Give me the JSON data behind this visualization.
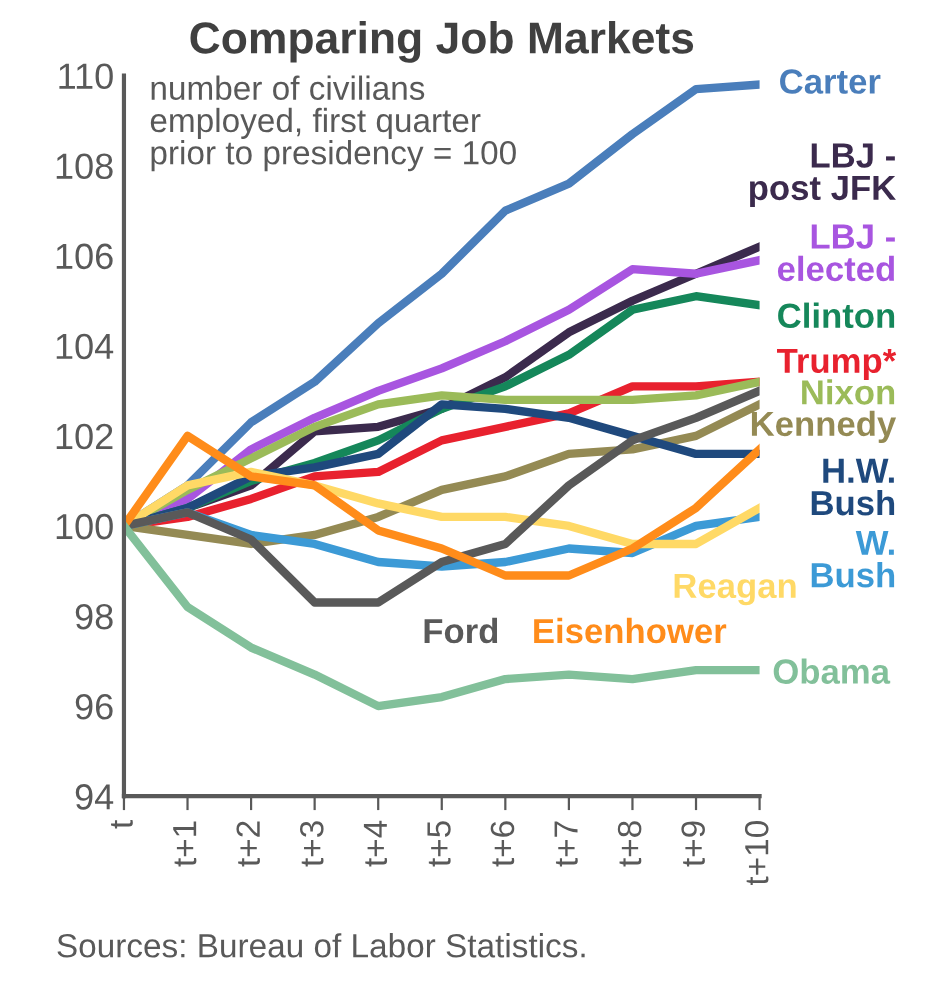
{
  "chart_data": {
    "type": "line",
    "title": "Comparing Job Markets",
    "annotations": [
      "number of civilians employed, first quarter prior to presidency = 100",
      "Sources: Bureau of Labor Statistics."
    ],
    "categories": [
      "t",
      "t+1",
      "t+2",
      "t+3",
      "t+4",
      "t+5",
      "t+6",
      "t+7",
      "t+8",
      "t+9",
      "t+10"
    ],
    "ylim": [
      94,
      110
    ],
    "yticks": [
      94,
      96,
      98,
      100,
      102,
      104,
      106,
      108,
      110
    ],
    "grid": false,
    "legend": false,
    "marker": "none",
    "line_style": "solid",
    "series": [
      {
        "name": "Carter",
        "color": "#4a7ebb",
        "values": [
          100,
          100.9,
          102.3,
          103.2,
          104.5,
          105.6,
          107.0,
          107.6,
          108.7,
          109.7,
          109.8
        ]
      },
      {
        "name": "LBJ - post JFK",
        "color": "#3b2a4d",
        "values": [
          100,
          100.4,
          100.9,
          102.1,
          102.2,
          102.6,
          103.3,
          104.3,
          105.0,
          105.6,
          106.2
        ]
      },
      {
        "name": "LBJ - elected",
        "color": "#a855e0",
        "values": [
          100,
          100.6,
          101.7,
          102.4,
          103.0,
          103.5,
          104.1,
          104.8,
          105.7,
          105.6,
          105.9
        ]
      },
      {
        "name": "Clinton",
        "color": "#15875a",
        "values": [
          100,
          100.4,
          101.0,
          101.4,
          101.9,
          102.6,
          103.1,
          103.8,
          104.8,
          105.1,
          104.9
        ]
      },
      {
        "name": "Trump*",
        "color": "#e8212e",
        "values": [
          100,
          100.2,
          100.6,
          101.1,
          101.2,
          101.9,
          102.2,
          102.5,
          103.1,
          103.1,
          103.2
        ]
      },
      {
        "name": "Nixon",
        "color": "#9bbb59",
        "values": [
          100,
          100.8,
          101.5,
          102.2,
          102.7,
          102.9,
          102.8,
          102.8,
          102.8,
          102.9,
          103.2
        ]
      },
      {
        "name": "Kennedy",
        "color": "#948a54",
        "values": [
          100,
          99.8,
          99.6,
          99.8,
          100.2,
          100.8,
          101.1,
          101.6,
          101.7,
          102.0,
          102.7
        ]
      },
      {
        "name": "H.W. Bush",
        "color": "#1f497d",
        "values": [
          100,
          100.4,
          101.1,
          101.3,
          101.6,
          102.7,
          102.6,
          102.4,
          102.0,
          101.6,
          101.6
        ]
      },
      {
        "name": "W. Bush",
        "color": "#3c9ad6",
        "values": [
          100,
          100.3,
          99.8,
          99.6,
          99.2,
          99.1,
          99.2,
          99.5,
          99.4,
          100.0,
          100.2
        ]
      },
      {
        "name": "Reagan",
        "color": "#ffd966",
        "values": [
          100,
          100.9,
          101.2,
          100.9,
          100.5,
          100.2,
          100.2,
          100.0,
          99.6,
          99.6,
          100.4
        ]
      },
      {
        "name": "Ford",
        "color": "#595959",
        "values": [
          100,
          100.3,
          99.7,
          98.3,
          98.3,
          99.2,
          99.6,
          100.9,
          101.9,
          102.4,
          103.0
        ]
      },
      {
        "name": "Eisenhower",
        "color": "#ff8c1a",
        "values": [
          100,
          102.0,
          101.1,
          100.9,
          99.9,
          99.5,
          98.9,
          98.9,
          99.5,
          100.4,
          101.7
        ]
      },
      {
        "name": "Obama",
        "color": "#82c09a",
        "values": [
          100,
          98.2,
          97.3,
          96.7,
          96.0,
          96.2,
          96.6,
          96.7,
          96.6,
          96.8,
          96.8
        ]
      }
    ]
  }
}
